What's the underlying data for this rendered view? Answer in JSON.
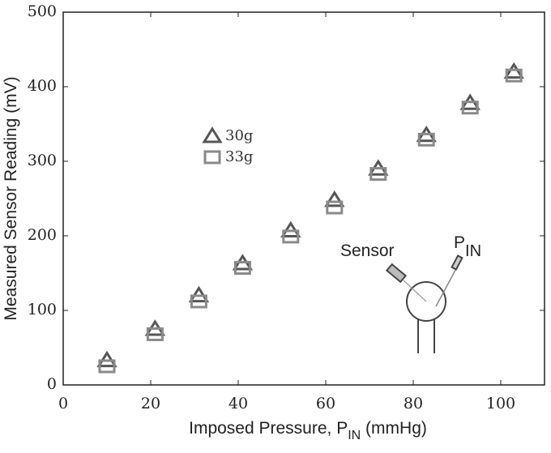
{
  "chart_data": {
    "type": "scatter",
    "x_label": {
      "text": "Imposed Pressure, P",
      "subscript": "IN",
      "suffix": " (mmHg)"
    },
    "y_label": "Measured Sensor Reading (mV)",
    "x": [
      10,
      21,
      31,
      41,
      52,
      62,
      72,
      83,
      93,
      103
    ],
    "series": [
      {
        "name": "30g",
        "color": "#555555",
        "marker": "triangle",
        "values": [
          33,
          75,
          120,
          163,
          207,
          248,
          290,
          335,
          378,
          420
        ]
      },
      {
        "name": "33g",
        "color": "#8a8a8a",
        "marker": "square",
        "values": [
          25,
          68,
          112,
          157,
          199,
          238,
          283,
          329,
          372,
          415
        ]
      }
    ],
    "xlim": [
      0,
      110
    ],
    "xticks": [
      0,
      20,
      40,
      60,
      80,
      100
    ],
    "ylim": [
      0,
      500
    ],
    "yticks": [
      0,
      100,
      200,
      300,
      400,
      500
    ],
    "grid": false,
    "annotations": [
      {
        "text": "Sensor"
      },
      {
        "text": "P",
        "subscript": "IN"
      }
    ]
  }
}
